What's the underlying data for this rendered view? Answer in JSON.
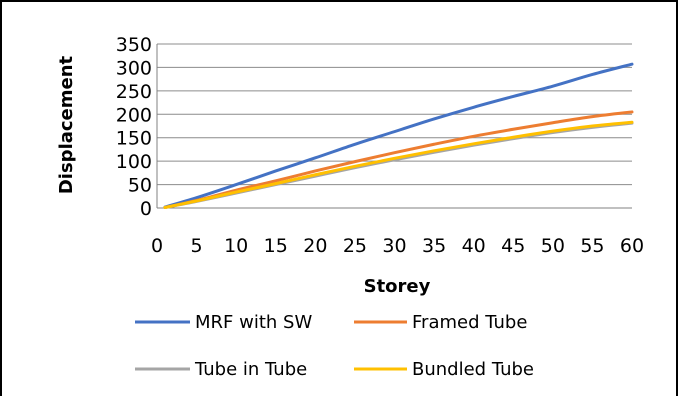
{
  "chart_data": {
    "type": "line",
    "title": "",
    "xlabel": "Storey",
    "ylabel": "Displacement",
    "xlim": [
      0,
      60
    ],
    "ylim": [
      0,
      350
    ],
    "xticks": [
      0,
      5,
      10,
      15,
      20,
      25,
      30,
      35,
      40,
      45,
      50,
      55,
      60
    ],
    "yticks": [
      0,
      50,
      100,
      150,
      200,
      250,
      300,
      350
    ],
    "grid": "horizontal",
    "legend_position": "bottom",
    "x": [
      1,
      5,
      10,
      15,
      20,
      25,
      30,
      35,
      40,
      45,
      50,
      55,
      60
    ],
    "series": [
      {
        "name": "MRF with SW",
        "color": "#4472C4",
        "values": [
          2,
          22,
          50,
          79,
          107,
          136,
          163,
          190,
          215,
          238,
          260,
          285,
          307
        ]
      },
      {
        "name": "Framed Tube",
        "color": "#ED7D31",
        "values": [
          1,
          16,
          38,
          58,
          79,
          99,
          118,
          136,
          153,
          168,
          182,
          195,
          205
        ]
      },
      {
        "name": "Tube in Tube",
        "color": "#A5A5A5",
        "values": [
          1,
          14,
          32,
          50,
          68,
          86,
          103,
          119,
          134,
          148,
          161,
          172,
          181
        ]
      },
      {
        "name": "Bundled Tube",
        "color": "#FFC000",
        "values": [
          1,
          15,
          34,
          52,
          71,
          89,
          106,
          122,
          137,
          151,
          164,
          175,
          183
        ]
      }
    ]
  }
}
